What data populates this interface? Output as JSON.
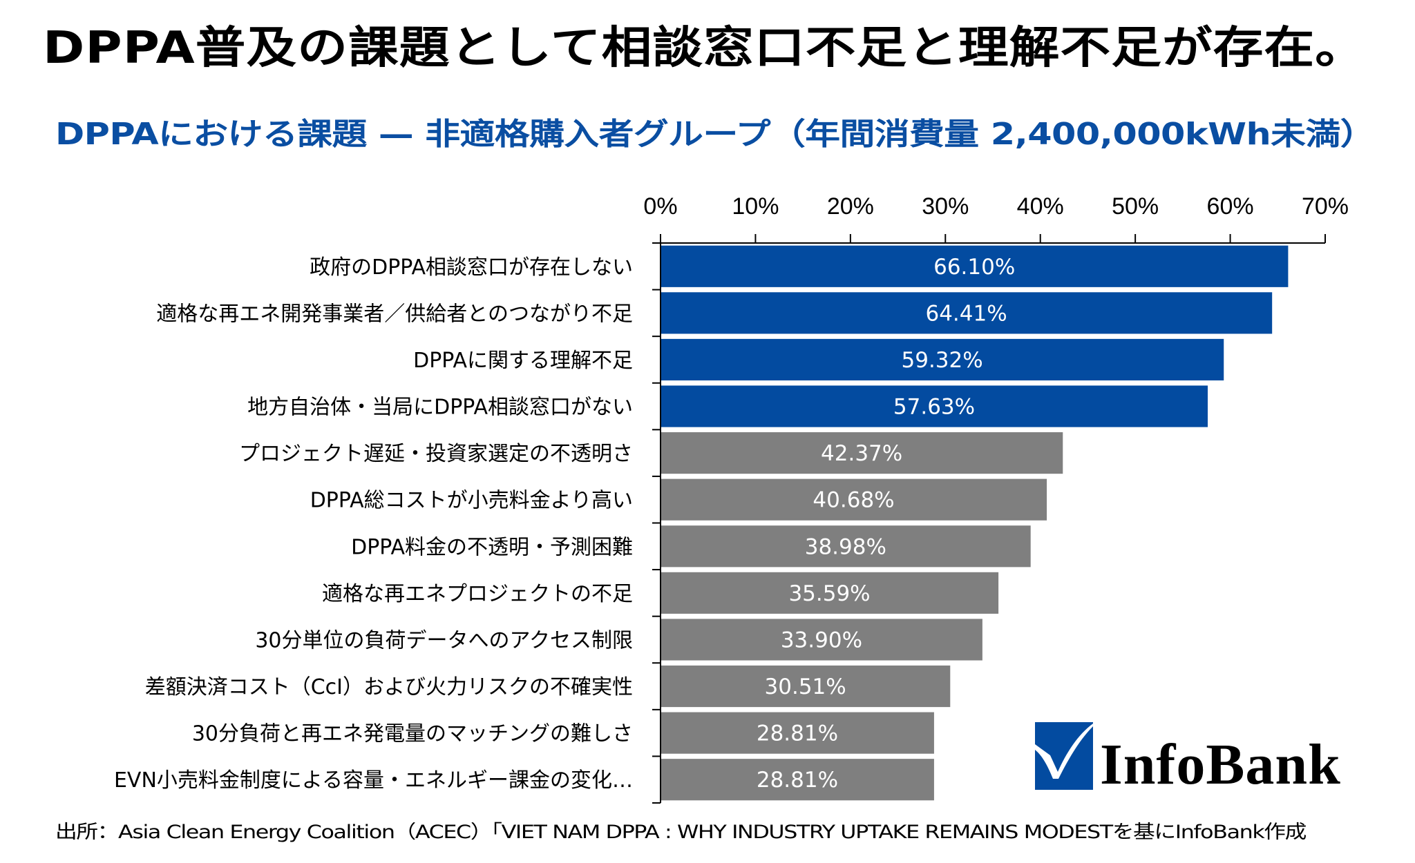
{
  "header": {
    "title": "DPPA普及の課題として相談窓口不足と理解不足が存在。",
    "subtitle": "DPPAにおける課題 — 非適格購入者グループ（年間消費量 2,400,000kWh未満）"
  },
  "colors": {
    "highlight_bar": "#034ba0",
    "default_bar": "#7f7f7f",
    "subtitle": "#0a4ea2",
    "value_label": "#ffffff"
  },
  "chart_data": {
    "type": "bar",
    "orientation": "horizontal",
    "title": "DPPAにおける課題 — 非適格購入者グループ（年間消費量 2,400,000kWh未満）",
    "xlabel": "",
    "ylabel": "",
    "xlim": [
      0,
      70
    ],
    "x_ticks": [
      0,
      10,
      20,
      30,
      40,
      50,
      60,
      70
    ],
    "x_tick_labels": [
      "0%",
      "10%",
      "20%",
      "30%",
      "40%",
      "50%",
      "60%",
      "70%"
    ],
    "x_axis_position": "top",
    "grid": false,
    "legend": "none",
    "categories": [
      "政府のDPPA相談窓口が存在しない",
      "適格な再エネ開発事業者／供給者とのつながり不足",
      "DPPAに関する理解不足",
      "地方自治体・当局にDPPA相談窓口がない",
      "プロジェクト遅延・投資家選定の不透明さ",
      "DPPA総コストが小売料金より高い",
      "DPPA料金の不透明・予測困難",
      "適格な再エネプロジェクトの不足",
      "30分単位の負荷データへのアクセス制限",
      "差額決済コスト（CcI）および火力リスクの不確実性",
      "30分負荷と再エネ発電量のマッチングの難しさ",
      "EVN小売料金制度による容量・エネルギー課金の変化…"
    ],
    "values": [
      66.1,
      64.41,
      59.32,
      57.63,
      42.37,
      40.68,
      38.98,
      35.59,
      33.9,
      30.51,
      28.81,
      28.81
    ],
    "value_labels": [
      "66.10%",
      "64.41%",
      "59.32%",
      "57.63%",
      "42.37%",
      "40.68%",
      "38.98%",
      "35.59%",
      "33.90%",
      "30.51%",
      "28.81%",
      "28.81%"
    ],
    "highlighted": [
      true,
      true,
      true,
      true,
      false,
      false,
      false,
      false,
      false,
      false,
      false,
      false
    ]
  },
  "footer": {
    "source": "出所：Asia Clean Energy Coalition（ACEC）「VIET NAM DPPA : WHY INDUSTRY UPTAKE REMAINS MODESTを基にInfoBank作成"
  },
  "logo": {
    "text": "InfoBank",
    "icon": "checkmark-icon"
  }
}
